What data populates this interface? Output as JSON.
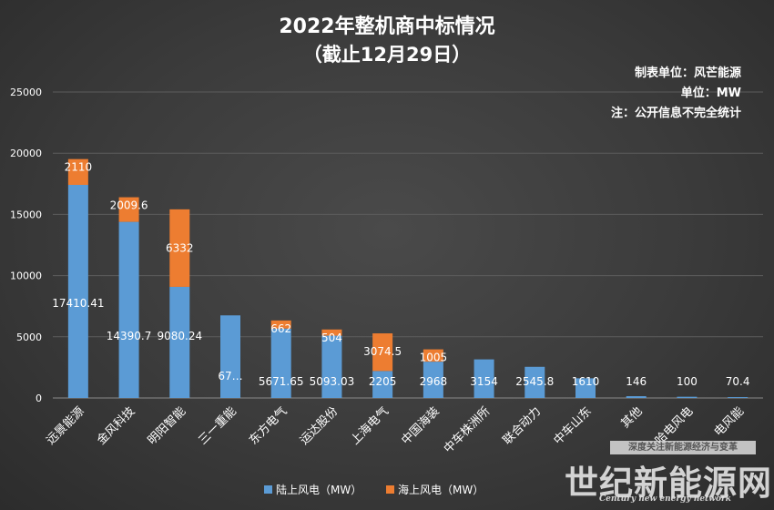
{
  "chart_data": {
    "type": "bar",
    "title": "2022年整机商中标情况",
    "subtitle": "（截止12月29日）",
    "notes": [
      "制表单位：风芒能源",
      "单位：MW",
      "注：公开信息不完全统计"
    ],
    "categories": [
      "远景能源",
      "金风科技",
      "明阳智能",
      "三一重能",
      "东方电气",
      "运达股份",
      "上海电气",
      "中国海装",
      "中车株洲所",
      "联合动力",
      "中车山东",
      "其他",
      "哈电风电",
      "电风能"
    ],
    "series": [
      {
        "name": "陆上风电（MW）",
        "color": "#5b9bd5",
        "values": [
          17410.41,
          14390.7,
          9080.24,
          6750,
          5671.65,
          5093.03,
          2205,
          2968,
          3154,
          2545.8,
          1610,
          146,
          100,
          70.4
        ],
        "labels": [
          "17410.41",
          "14390.7",
          "9080.24",
          "67…",
          "5671.65",
          "5093.03",
          "2205",
          "2968",
          "3154",
          "2545.8",
          "1610",
          "146",
          "100",
          "70.4"
        ]
      },
      {
        "name": "海上风电（MW）",
        "color": "#ed7d31",
        "values": [
          2110,
          2009.6,
          6332,
          0,
          662,
          504,
          3074.5,
          1005,
          0,
          0,
          0,
          0,
          0,
          0
        ],
        "labels": [
          "2110",
          "2009.6",
          "6332",
          "",
          "662",
          "504",
          "3074.5",
          "1005",
          "",
          "",
          "",
          "",
          "",
          ""
        ]
      }
    ],
    "yticks": [
      "0",
      "5000",
      "10000",
      "15000",
      "20000",
      "25000"
    ],
    "ylim": [
      0,
      25000
    ],
    "grid": true,
    "legend_position": "bottom"
  },
  "watermark": {
    "small": "深度关注新能源经济与变革",
    "big": "世纪新能源网",
    "sub": "Century new energy network"
  }
}
